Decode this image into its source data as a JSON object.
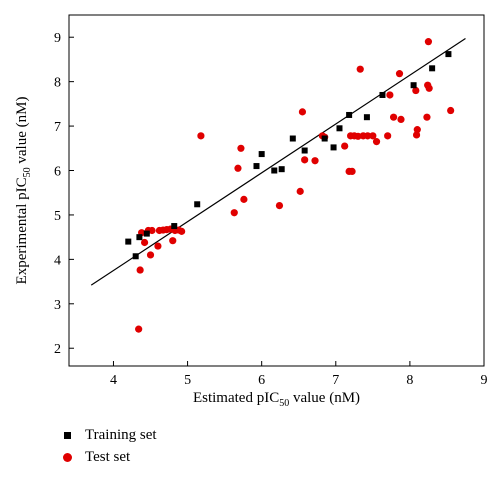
{
  "chart_data": {
    "type": "scatter",
    "xlabel": {
      "pre": "Estimated pIC",
      "sub": "50",
      "post": " value (nM)"
    },
    "ylabel": {
      "pre": "Experimental pIC",
      "sub": "50",
      "post": " value (nM)"
    },
    "xlim": [
      3.4,
      9.0
    ],
    "ylim": [
      1.6,
      9.5
    ],
    "xticks": [
      "4",
      "5",
      "6",
      "7",
      "8",
      "9"
    ],
    "yticks": [
      "2",
      "3",
      "4",
      "5",
      "6",
      "7",
      "8",
      "9"
    ],
    "grid": false,
    "legend_position": "bottom-left",
    "colors": {
      "training": "#000000",
      "test": "#e00000"
    },
    "fit_line": {
      "x": [
        3.7,
        8.75
      ],
      "y": [
        3.42,
        8.97
      ]
    },
    "series": [
      {
        "name": "Training set",
        "marker": "square",
        "points": [
          [
            4.2,
            4.4
          ],
          [
            4.3,
            4.07
          ],
          [
            4.35,
            4.5
          ],
          [
            4.45,
            4.58
          ],
          [
            4.82,
            4.75
          ],
          [
            5.13,
            5.24
          ],
          [
            5.93,
            6.1
          ],
          [
            6.0,
            6.37
          ],
          [
            6.17,
            6.0
          ],
          [
            6.27,
            6.03
          ],
          [
            6.42,
            6.72
          ],
          [
            6.58,
            6.45
          ],
          [
            6.85,
            6.72
          ],
          [
            6.97,
            6.52
          ],
          [
            7.05,
            6.95
          ],
          [
            7.18,
            7.25
          ],
          [
            7.42,
            7.2
          ],
          [
            7.63,
            7.7
          ],
          [
            8.05,
            7.92
          ],
          [
            8.3,
            8.3
          ],
          [
            8.52,
            8.62
          ]
        ]
      },
      {
        "name": "Test set",
        "marker": "circle",
        "points": [
          [
            4.34,
            2.43
          ],
          [
            4.36,
            3.76
          ],
          [
            4.38,
            4.6
          ],
          [
            4.42,
            4.38
          ],
          [
            4.47,
            4.65
          ],
          [
            4.5,
            4.1
          ],
          [
            4.52,
            4.65
          ],
          [
            4.6,
            4.3
          ],
          [
            4.62,
            4.65
          ],
          [
            4.67,
            4.66
          ],
          [
            4.72,
            4.67
          ],
          [
            4.77,
            4.68
          ],
          [
            4.8,
            4.42
          ],
          [
            4.83,
            4.65
          ],
          [
            4.88,
            4.66
          ],
          [
            4.92,
            4.63
          ],
          [
            5.18,
            6.78
          ],
          [
            5.63,
            5.05
          ],
          [
            5.68,
            6.05
          ],
          [
            5.72,
            6.5
          ],
          [
            5.76,
            5.35
          ],
          [
            6.24,
            5.21
          ],
          [
            6.52,
            5.53
          ],
          [
            6.55,
            7.32
          ],
          [
            6.58,
            6.24
          ],
          [
            6.72,
            6.22
          ],
          [
            6.82,
            6.78
          ],
          [
            6.85,
            6.75
          ],
          [
            7.12,
            6.55
          ],
          [
            7.18,
            5.98
          ],
          [
            7.2,
            6.78
          ],
          [
            7.22,
            5.98
          ],
          [
            7.25,
            6.78
          ],
          [
            7.3,
            6.77
          ],
          [
            7.33,
            8.28
          ],
          [
            7.37,
            6.78
          ],
          [
            7.43,
            6.78
          ],
          [
            7.5,
            6.78
          ],
          [
            7.55,
            6.65
          ],
          [
            7.7,
            6.78
          ],
          [
            7.73,
            7.7
          ],
          [
            7.78,
            7.2
          ],
          [
            7.86,
            8.18
          ],
          [
            7.88,
            7.15
          ],
          [
            8.08,
            7.8
          ],
          [
            8.09,
            6.8
          ],
          [
            8.1,
            6.92
          ],
          [
            8.23,
            7.2
          ],
          [
            8.24,
            7.92
          ],
          [
            8.25,
            8.9
          ],
          [
            8.26,
            7.85
          ],
          [
            8.55,
            7.35
          ]
        ]
      }
    ]
  }
}
